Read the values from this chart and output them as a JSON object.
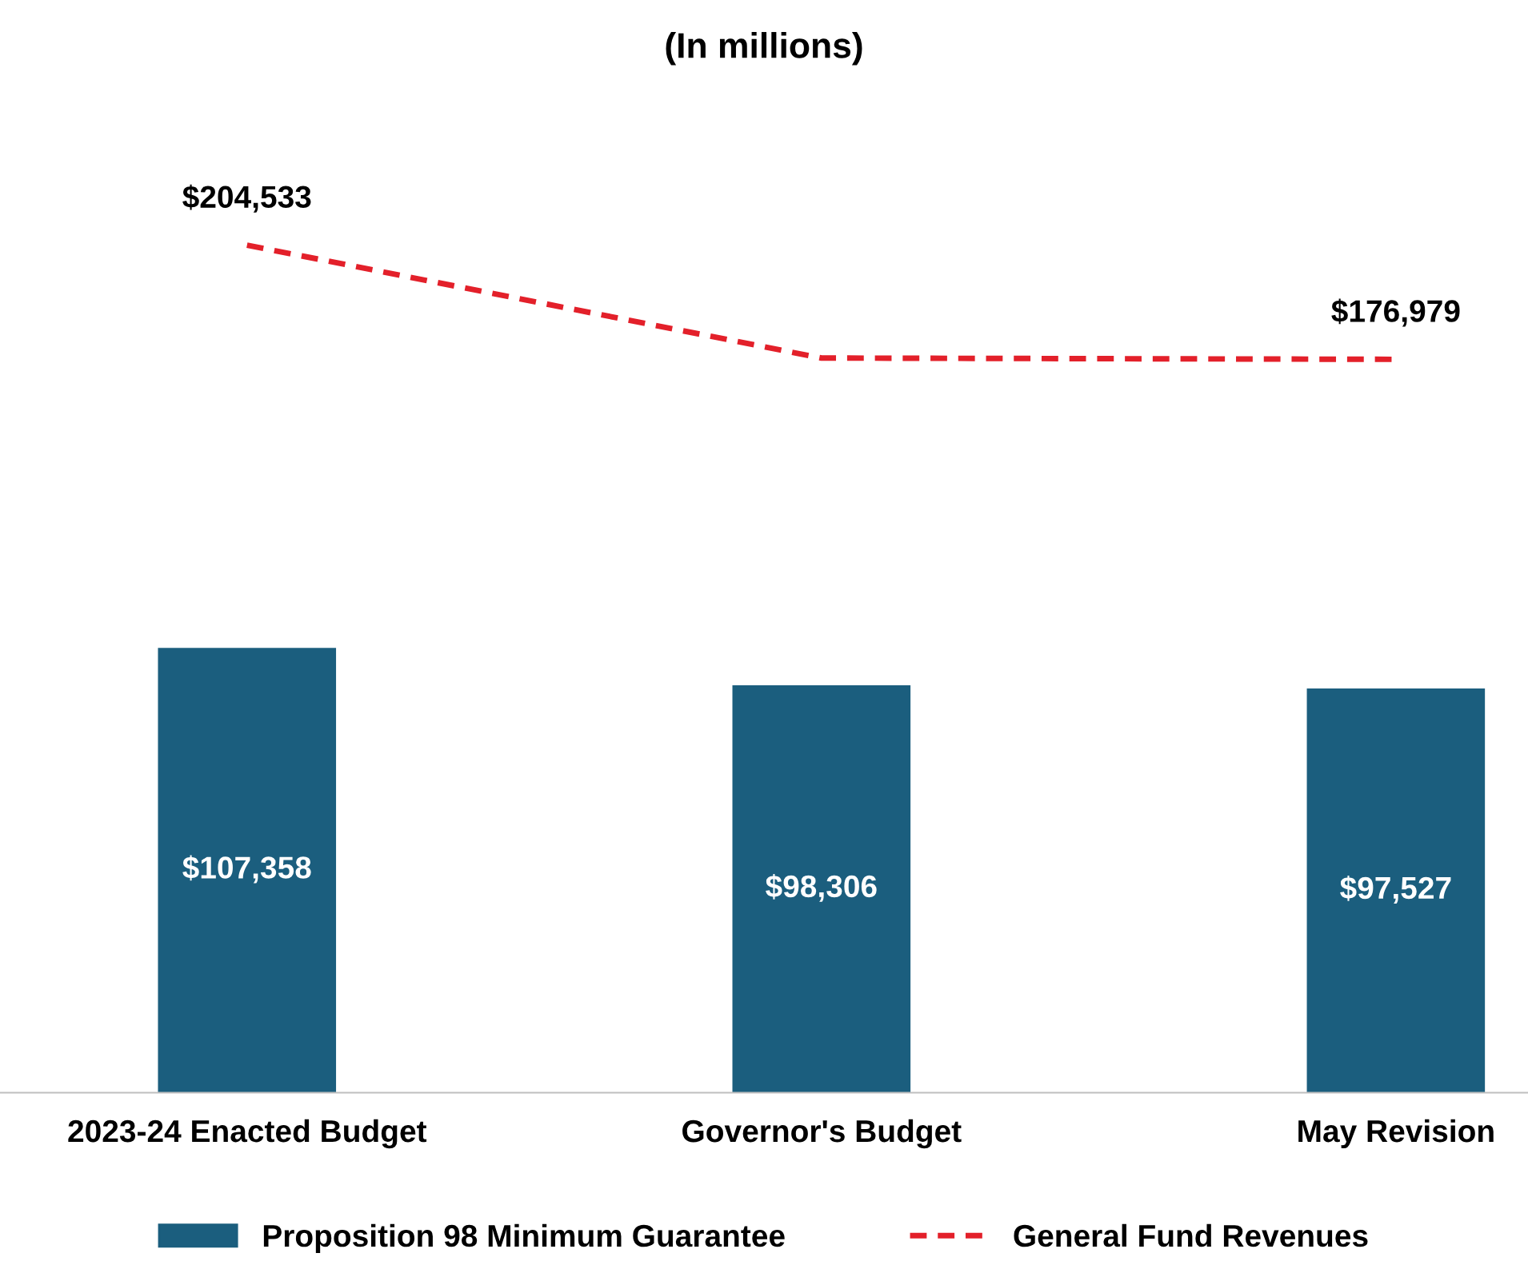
{
  "chart_data": {
    "type": "bar",
    "title": "(In millions)",
    "categories": [
      "2023-24 Enacted Budget",
      "Governor's Budget",
      "May Revision"
    ],
    "series": [
      {
        "name": "Proposition 98 Minimum Guarantee",
        "color": "#1b5e7e",
        "values": [
          107358,
          98306,
          97527
        ],
        "value_labels": [
          "$107,358",
          "$98,306",
          "$97,527"
        ]
      },
      {
        "name": "General Fund Revenues",
        "type": "line",
        "color": "#e3202a",
        "line_style": "dashed",
        "values": [
          204533,
          177300,
          176979
        ],
        "value_labels": [
          "$204,533",
          null,
          "$176,979"
        ]
      }
    ],
    "tick_labels": "x",
    "grid": false,
    "legend": "bottom",
    "marker": "none"
  }
}
